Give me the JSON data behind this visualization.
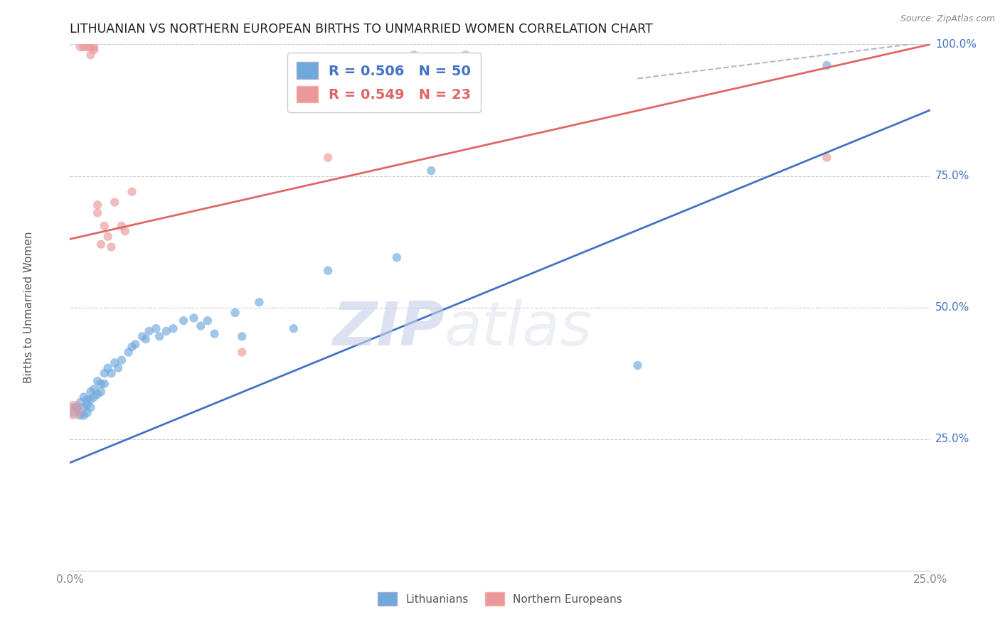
{
  "title": "LITHUANIAN VS NORTHERN EUROPEAN BIRTHS TO UNMARRIED WOMEN CORRELATION CHART",
  "source": "Source: ZipAtlas.com",
  "ylabel": "Births to Unmarried Women",
  "xlim": [
    0.0,
    0.25
  ],
  "ylim": [
    0.0,
    1.0
  ],
  "xticks": [
    0.0,
    0.05,
    0.1,
    0.15,
    0.2,
    0.25
  ],
  "yticks": [
    0.25,
    0.5,
    0.75,
    1.0
  ],
  "xticklabels": [
    "0.0%",
    "",
    "",
    "",
    "",
    "25.0%"
  ],
  "yticklabels": [
    "25.0%",
    "50.0%",
    "75.0%",
    "100.0%"
  ],
  "legend_r1": "R = 0.506",
  "legend_n1": "N = 50",
  "legend_r2": "R = 0.549",
  "legend_n2": "N = 23",
  "label1": "Lithuanians",
  "label2": "Northern Europeans",
  "color1": "#6fa8dc",
  "color2": "#ea9999",
  "line_color1": "#4472c4",
  "line_color2": "#e06666",
  "watermark_zip": "ZIP",
  "watermark_atlas": "atlas",
  "bg_color": "#ffffff",
  "axis_color": "#4472c4",
  "grid_color": "#cccccc",
  "title_fontsize": 12.5,
  "label_fontsize": 11,
  "tick_fontsize": 11,
  "legend_fontsize": 14,
  "blue_line_x": [
    0.0,
    0.25
  ],
  "blue_line_y": [
    0.205,
    0.875
  ],
  "pink_line_x": [
    0.0,
    0.25
  ],
  "pink_line_y": [
    0.63,
    1.0
  ],
  "diag_line_x": [
    0.165,
    0.25
  ],
  "diag_line_y": [
    0.935,
    1.005
  ],
  "blue_scatter_x": [
    0.001,
    0.002,
    0.003,
    0.003,
    0.004,
    0.004,
    0.004,
    0.005,
    0.005,
    0.005,
    0.006,
    0.006,
    0.006,
    0.007,
    0.007,
    0.008,
    0.008,
    0.009,
    0.009,
    0.01,
    0.01,
    0.011,
    0.012,
    0.013,
    0.014,
    0.015,
    0.017,
    0.018,
    0.019,
    0.021,
    0.022,
    0.023,
    0.025,
    0.026,
    0.028,
    0.03,
    0.033,
    0.036,
    0.038,
    0.04,
    0.042,
    0.048,
    0.05,
    0.055,
    0.065,
    0.075,
    0.095,
    0.105,
    0.165,
    0.22
  ],
  "blue_scatter_y": [
    0.305,
    0.31,
    0.295,
    0.32,
    0.295,
    0.31,
    0.33,
    0.3,
    0.315,
    0.325,
    0.31,
    0.325,
    0.34,
    0.33,
    0.345,
    0.335,
    0.36,
    0.34,
    0.355,
    0.355,
    0.375,
    0.385,
    0.375,
    0.395,
    0.385,
    0.4,
    0.415,
    0.425,
    0.43,
    0.445,
    0.44,
    0.455,
    0.46,
    0.445,
    0.455,
    0.46,
    0.475,
    0.48,
    0.465,
    0.475,
    0.45,
    0.49,
    0.445,
    0.51,
    0.46,
    0.57,
    0.595,
    0.76,
    0.39,
    0.96
  ],
  "blue_scatter_size": [
    200,
    100,
    80,
    80,
    80,
    80,
    80,
    80,
    80,
    80,
    80,
    80,
    80,
    80,
    80,
    80,
    80,
    80,
    80,
    80,
    80,
    80,
    80,
    80,
    80,
    80,
    80,
    80,
    80,
    80,
    80,
    80,
    80,
    80,
    80,
    80,
    80,
    80,
    80,
    80,
    80,
    80,
    80,
    80,
    80,
    80,
    80,
    80,
    80,
    80
  ],
  "pink_scatter_x": [
    0.001,
    0.003,
    0.004,
    0.005,
    0.006,
    0.006,
    0.007,
    0.007,
    0.008,
    0.008,
    0.009,
    0.01,
    0.011,
    0.012,
    0.013,
    0.015,
    0.016,
    0.018,
    0.05,
    0.075,
    0.1,
    0.115,
    0.22
  ],
  "pink_scatter_y": [
    0.305,
    0.995,
    0.995,
    0.995,
    0.995,
    0.98,
    0.995,
    0.99,
    0.68,
    0.695,
    0.62,
    0.655,
    0.635,
    0.615,
    0.7,
    0.655,
    0.645,
    0.72,
    0.415,
    0.785,
    0.98,
    0.98,
    0.785
  ],
  "pink_scatter_size": [
    350,
    80,
    80,
    80,
    80,
    80,
    80,
    80,
    80,
    80,
    80,
    80,
    80,
    80,
    80,
    80,
    80,
    80,
    80,
    80,
    80,
    80,
    80
  ]
}
